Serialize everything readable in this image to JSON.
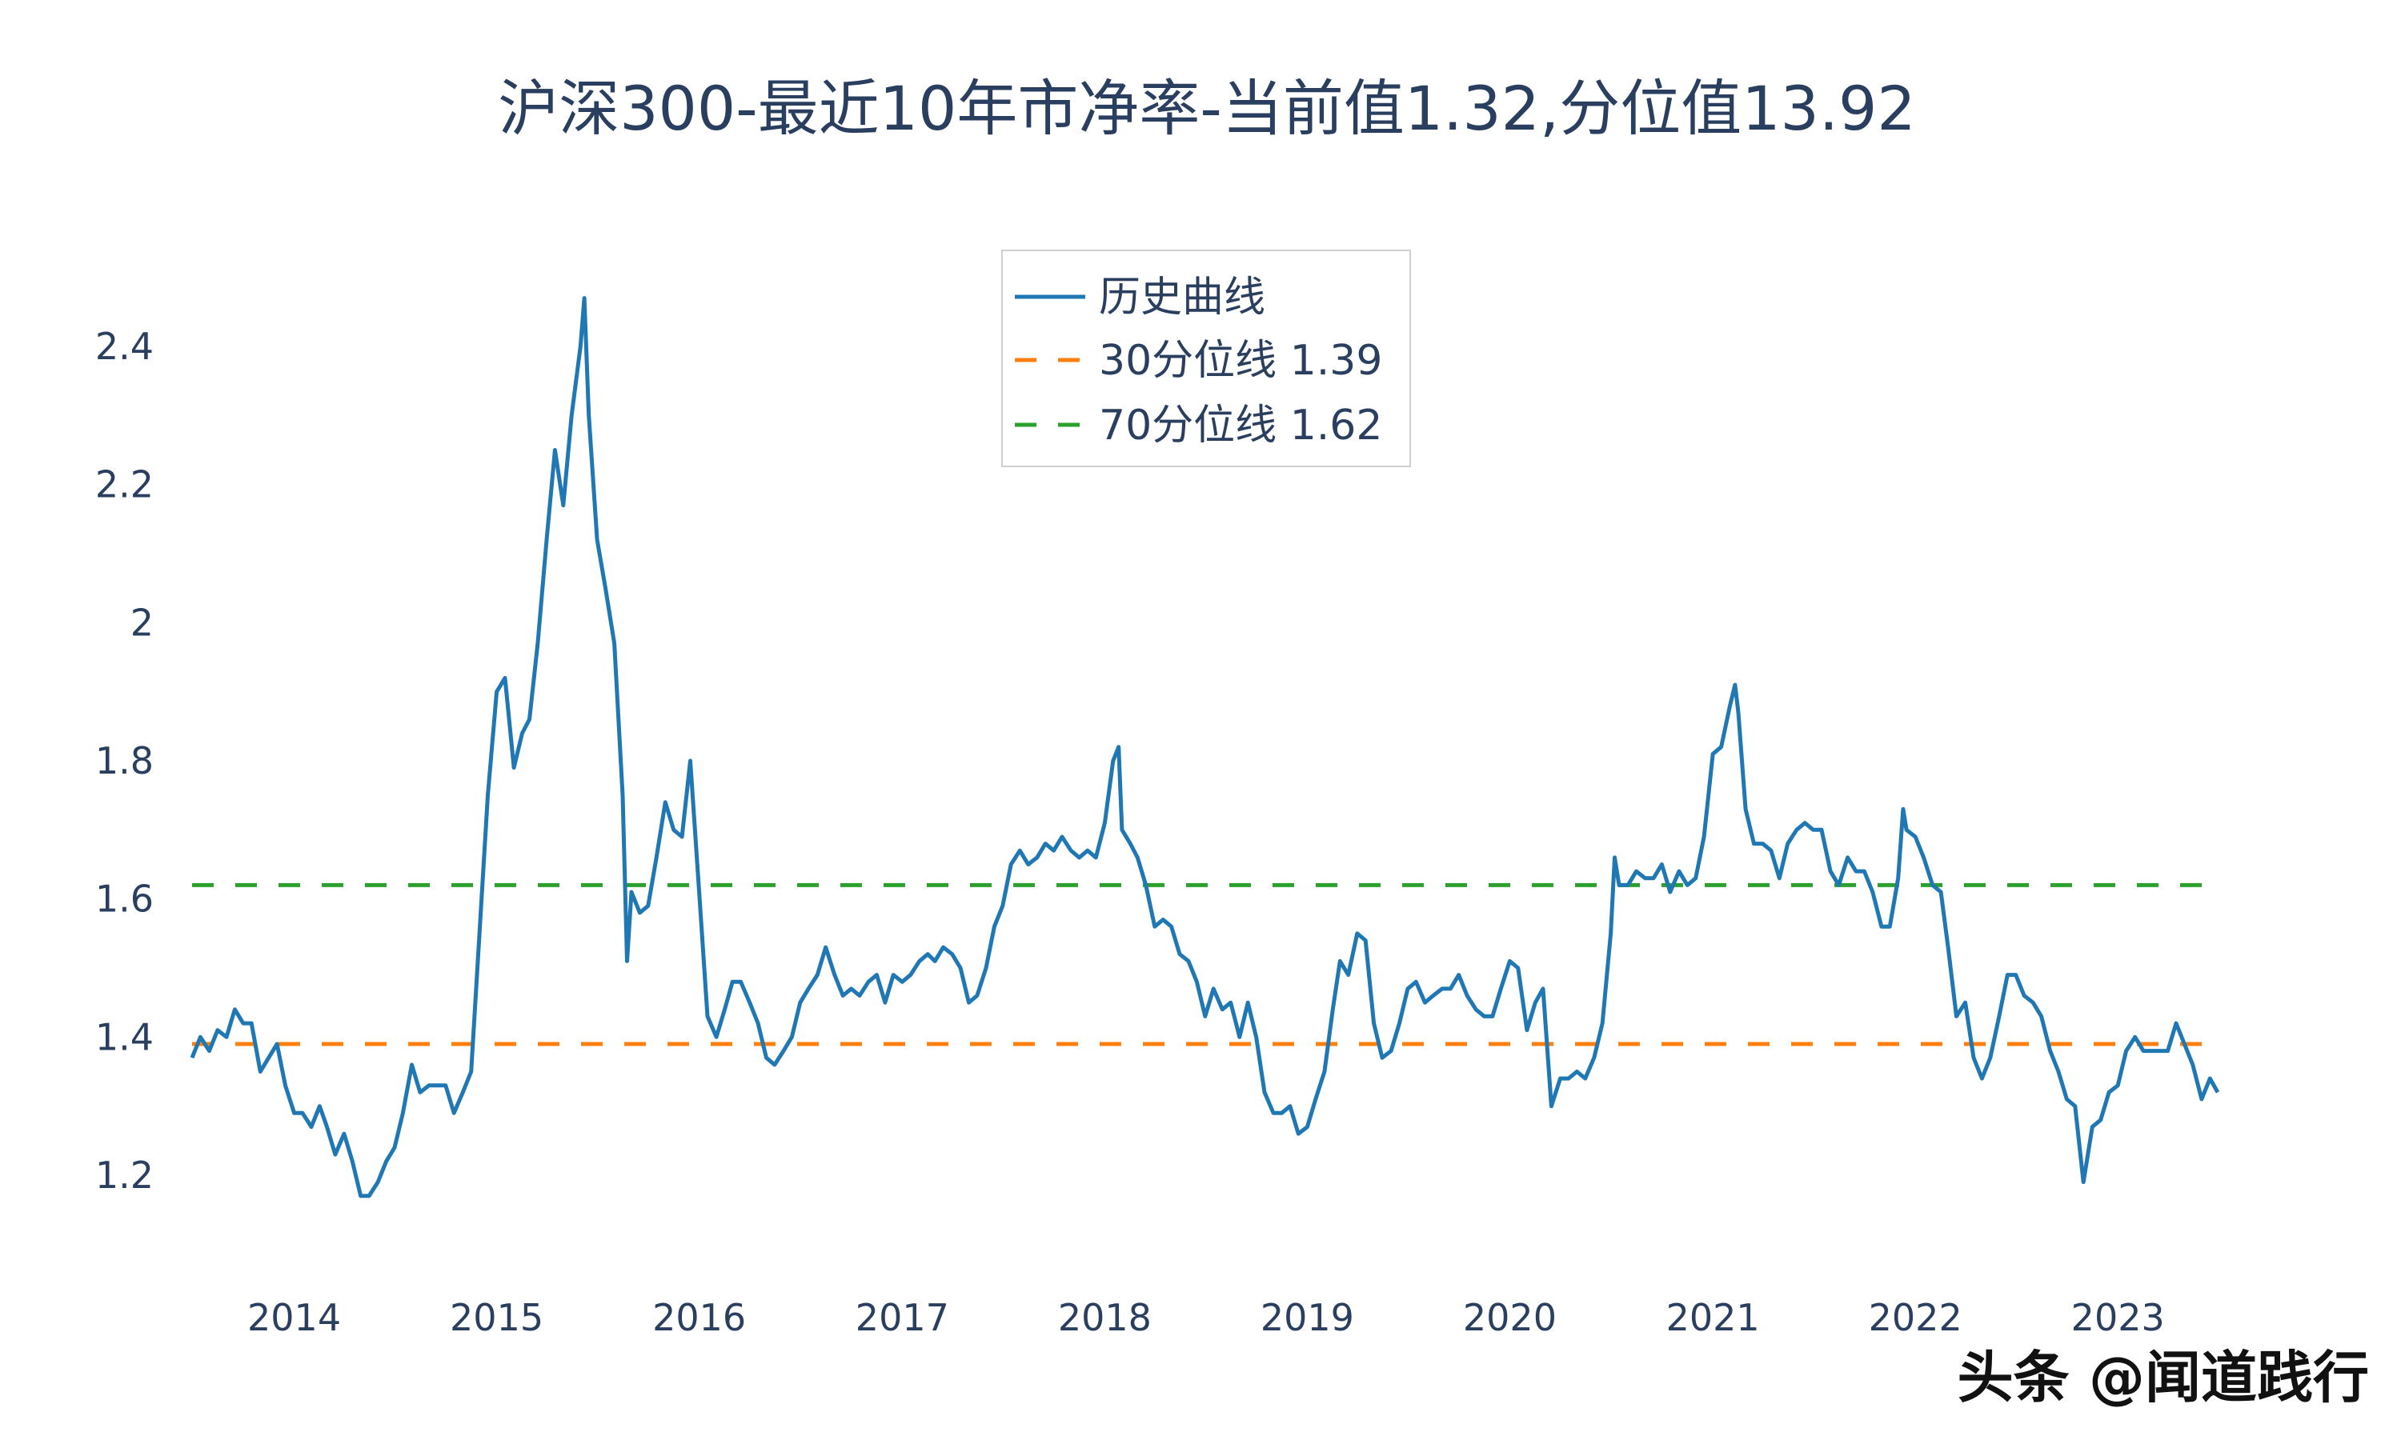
{
  "chart_data": {
    "type": "line",
    "title": "沪深300-最近10年市净率-当前值1.32,分位值13.92",
    "xlabel": "",
    "ylabel": "",
    "ylim": [
      1.08,
      2.52
    ],
    "xlim": [
      "2013-07-01",
      "2023-06-30"
    ],
    "yticks": [
      "2.4",
      "2.2",
      "2",
      "1.8",
      "1.6",
      "1.4",
      "1.2"
    ],
    "xticks": [
      "2014",
      "2015",
      "2016",
      "2017",
      "2018",
      "2019",
      "2020",
      "2021",
      "2022",
      "2023"
    ],
    "grid": false,
    "legend_position": "top-center",
    "series": [
      {
        "name": "历史曲线",
        "color": "#1f77b4",
        "style": "solid",
        "points": [
          [
            "2013-07-01",
            1.37
          ],
          [
            "2013-07-16",
            1.4
          ],
          [
            "2013-08-01",
            1.38
          ],
          [
            "2013-08-16",
            1.41
          ],
          [
            "2013-09-01",
            1.4
          ],
          [
            "2013-09-16",
            1.44
          ],
          [
            "2013-10-01",
            1.42
          ],
          [
            "2013-10-16",
            1.42
          ],
          [
            "2013-11-01",
            1.35
          ],
          [
            "2013-11-16",
            1.37
          ],
          [
            "2013-12-01",
            1.39
          ],
          [
            "2013-12-16",
            1.33
          ],
          [
            "2014-01-01",
            1.29
          ],
          [
            "2014-01-16",
            1.29
          ],
          [
            "2014-02-01",
            1.27
          ],
          [
            "2014-02-16",
            1.3
          ],
          [
            "2014-03-01",
            1.27
          ],
          [
            "2014-03-16",
            1.23
          ],
          [
            "2014-04-01",
            1.26
          ],
          [
            "2014-04-16",
            1.22
          ],
          [
            "2014-05-01",
            1.17
          ],
          [
            "2014-05-16",
            1.17
          ],
          [
            "2014-06-01",
            1.19
          ],
          [
            "2014-06-16",
            1.22
          ],
          [
            "2014-07-01",
            1.24
          ],
          [
            "2014-07-16",
            1.29
          ],
          [
            "2014-08-01",
            1.36
          ],
          [
            "2014-08-16",
            1.32
          ],
          [
            "2014-09-01",
            1.33
          ],
          [
            "2014-09-16",
            1.33
          ],
          [
            "2014-10-01",
            1.33
          ],
          [
            "2014-10-16",
            1.29
          ],
          [
            "2014-11-01",
            1.32
          ],
          [
            "2014-11-16",
            1.35
          ],
          [
            "2014-12-01",
            1.55
          ],
          [
            "2014-12-16",
            1.75
          ],
          [
            "2015-01-01",
            1.9
          ],
          [
            "2015-01-16",
            1.92
          ],
          [
            "2015-02-01",
            1.79
          ],
          [
            "2015-02-16",
            1.84
          ],
          [
            "2015-03-01",
            1.86
          ],
          [
            "2015-03-16",
            1.97
          ],
          [
            "2015-04-01",
            2.12
          ],
          [
            "2015-04-16",
            2.25
          ],
          [
            "2015-05-01",
            2.17
          ],
          [
            "2015-05-16",
            2.3
          ],
          [
            "2015-06-01",
            2.4
          ],
          [
            "2015-06-08",
            2.47
          ],
          [
            "2015-06-16",
            2.3
          ],
          [
            "2015-07-01",
            2.12
          ],
          [
            "2015-07-16",
            2.05
          ],
          [
            "2015-08-01",
            1.97
          ],
          [
            "2015-08-16",
            1.75
          ],
          [
            "2015-08-24",
            1.51
          ],
          [
            "2015-09-01",
            1.61
          ],
          [
            "2015-09-16",
            1.58
          ],
          [
            "2015-10-01",
            1.59
          ],
          [
            "2015-10-16",
            1.66
          ],
          [
            "2015-11-01",
            1.74
          ],
          [
            "2015-11-16",
            1.7
          ],
          [
            "2015-12-01",
            1.69
          ],
          [
            "2015-12-16",
            1.8
          ],
          [
            "2016-01-01",
            1.61
          ],
          [
            "2016-01-16",
            1.43
          ],
          [
            "2016-02-01",
            1.4
          ],
          [
            "2016-02-16",
            1.44
          ],
          [
            "2016-03-01",
            1.48
          ],
          [
            "2016-03-16",
            1.48
          ],
          [
            "2016-04-01",
            1.45
          ],
          [
            "2016-04-16",
            1.42
          ],
          [
            "2016-05-01",
            1.37
          ],
          [
            "2016-05-16",
            1.36
          ],
          [
            "2016-06-01",
            1.38
          ],
          [
            "2016-06-16",
            1.4
          ],
          [
            "2016-07-01",
            1.45
          ],
          [
            "2016-07-16",
            1.47
          ],
          [
            "2016-08-01",
            1.49
          ],
          [
            "2016-08-16",
            1.53
          ],
          [
            "2016-09-01",
            1.49
          ],
          [
            "2016-09-16",
            1.46
          ],
          [
            "2016-10-01",
            1.47
          ],
          [
            "2016-10-16",
            1.46
          ],
          [
            "2016-11-01",
            1.48
          ],
          [
            "2016-11-16",
            1.49
          ],
          [
            "2016-12-01",
            1.45
          ],
          [
            "2016-12-16",
            1.49
          ],
          [
            "2017-01-01",
            1.48
          ],
          [
            "2017-01-16",
            1.49
          ],
          [
            "2017-02-01",
            1.51
          ],
          [
            "2017-02-16",
            1.52
          ],
          [
            "2017-03-01",
            1.51
          ],
          [
            "2017-03-16",
            1.53
          ],
          [
            "2017-04-01",
            1.52
          ],
          [
            "2017-04-16",
            1.5
          ],
          [
            "2017-05-01",
            1.45
          ],
          [
            "2017-05-16",
            1.46
          ],
          [
            "2017-06-01",
            1.5
          ],
          [
            "2017-06-16",
            1.56
          ],
          [
            "2017-07-01",
            1.59
          ],
          [
            "2017-07-16",
            1.65
          ],
          [
            "2017-08-01",
            1.67
          ],
          [
            "2017-08-16",
            1.65
          ],
          [
            "2017-09-01",
            1.66
          ],
          [
            "2017-09-16",
            1.68
          ],
          [
            "2017-10-01",
            1.67
          ],
          [
            "2017-10-16",
            1.69
          ],
          [
            "2017-11-01",
            1.67
          ],
          [
            "2017-11-16",
            1.66
          ],
          [
            "2017-12-01",
            1.67
          ],
          [
            "2017-12-16",
            1.66
          ],
          [
            "2018-01-01",
            1.71
          ],
          [
            "2018-01-16",
            1.8
          ],
          [
            "2018-01-26",
            1.82
          ],
          [
            "2018-02-01",
            1.7
          ],
          [
            "2018-02-16",
            1.68
          ],
          [
            "2018-03-01",
            1.66
          ],
          [
            "2018-03-16",
            1.62
          ],
          [
            "2018-04-01",
            1.56
          ],
          [
            "2018-04-16",
            1.57
          ],
          [
            "2018-05-01",
            1.56
          ],
          [
            "2018-05-16",
            1.52
          ],
          [
            "2018-06-01",
            1.51
          ],
          [
            "2018-06-16",
            1.48
          ],
          [
            "2018-07-01",
            1.43
          ],
          [
            "2018-07-16",
            1.47
          ],
          [
            "2018-08-01",
            1.44
          ],
          [
            "2018-08-16",
            1.45
          ],
          [
            "2018-09-01",
            1.4
          ],
          [
            "2018-09-16",
            1.45
          ],
          [
            "2018-10-01",
            1.4
          ],
          [
            "2018-10-16",
            1.32
          ],
          [
            "2018-11-01",
            1.29
          ],
          [
            "2018-11-16",
            1.29
          ],
          [
            "2018-12-01",
            1.3
          ],
          [
            "2018-12-16",
            1.26
          ],
          [
            "2019-01-01",
            1.27
          ],
          [
            "2019-01-16",
            1.31
          ],
          [
            "2019-02-01",
            1.35
          ],
          [
            "2019-02-16",
            1.44
          ],
          [
            "2019-03-01",
            1.51
          ],
          [
            "2019-03-16",
            1.49
          ],
          [
            "2019-04-01",
            1.55
          ],
          [
            "2019-04-16",
            1.54
          ],
          [
            "2019-05-01",
            1.42
          ],
          [
            "2019-05-16",
            1.37
          ],
          [
            "2019-06-01",
            1.38
          ],
          [
            "2019-06-16",
            1.42
          ],
          [
            "2019-07-01",
            1.47
          ],
          [
            "2019-07-16",
            1.48
          ],
          [
            "2019-08-01",
            1.45
          ],
          [
            "2019-08-16",
            1.46
          ],
          [
            "2019-09-01",
            1.47
          ],
          [
            "2019-09-16",
            1.47
          ],
          [
            "2019-10-01",
            1.49
          ],
          [
            "2019-10-16",
            1.46
          ],
          [
            "2019-11-01",
            1.44
          ],
          [
            "2019-11-16",
            1.43
          ],
          [
            "2019-12-01",
            1.43
          ],
          [
            "2019-12-16",
            1.47
          ],
          [
            "2020-01-01",
            1.51
          ],
          [
            "2020-01-16",
            1.5
          ],
          [
            "2020-02-01",
            1.41
          ],
          [
            "2020-02-16",
            1.45
          ],
          [
            "2020-03-01",
            1.47
          ],
          [
            "2020-03-16",
            1.3
          ],
          [
            "2020-04-01",
            1.34
          ],
          [
            "2020-04-16",
            1.34
          ],
          [
            "2020-05-01",
            1.35
          ],
          [
            "2020-05-16",
            1.34
          ],
          [
            "2020-06-01",
            1.37
          ],
          [
            "2020-06-16",
            1.42
          ],
          [
            "2020-07-01",
            1.55
          ],
          [
            "2020-07-08",
            1.66
          ],
          [
            "2020-07-16",
            1.62
          ],
          [
            "2020-08-01",
            1.62
          ],
          [
            "2020-08-16",
            1.64
          ],
          [
            "2020-09-01",
            1.63
          ],
          [
            "2020-09-16",
            1.63
          ],
          [
            "2020-10-01",
            1.65
          ],
          [
            "2020-10-16",
            1.61
          ],
          [
            "2020-11-01",
            1.64
          ],
          [
            "2020-11-16",
            1.62
          ],
          [
            "2020-12-01",
            1.63
          ],
          [
            "2020-12-16",
            1.69
          ],
          [
            "2021-01-01",
            1.81
          ],
          [
            "2021-01-16",
            1.82
          ],
          [
            "2021-02-01",
            1.88
          ],
          [
            "2021-02-10",
            1.91
          ],
          [
            "2021-02-16",
            1.87
          ],
          [
            "2021-03-01",
            1.73
          ],
          [
            "2021-03-16",
            1.68
          ],
          [
            "2021-04-01",
            1.68
          ],
          [
            "2021-04-16",
            1.67
          ],
          [
            "2021-05-01",
            1.63
          ],
          [
            "2021-05-16",
            1.68
          ],
          [
            "2021-06-01",
            1.7
          ],
          [
            "2021-06-16",
            1.71
          ],
          [
            "2021-07-01",
            1.7
          ],
          [
            "2021-07-16",
            1.7
          ],
          [
            "2021-08-01",
            1.64
          ],
          [
            "2021-08-16",
            1.62
          ],
          [
            "2021-09-01",
            1.66
          ],
          [
            "2021-09-16",
            1.64
          ],
          [
            "2021-10-01",
            1.64
          ],
          [
            "2021-10-16",
            1.61
          ],
          [
            "2021-11-01",
            1.56
          ],
          [
            "2021-11-16",
            1.56
          ],
          [
            "2021-12-01",
            1.63
          ],
          [
            "2021-12-10",
            1.73
          ],
          [
            "2021-12-16",
            1.7
          ],
          [
            "2022-01-01",
            1.69
          ],
          [
            "2022-01-16",
            1.66
          ],
          [
            "2022-02-01",
            1.62
          ],
          [
            "2022-02-16",
            1.61
          ],
          [
            "2022-03-01",
            1.53
          ],
          [
            "2022-03-16",
            1.43
          ],
          [
            "2022-04-01",
            1.45
          ],
          [
            "2022-04-16",
            1.37
          ],
          [
            "2022-05-01",
            1.34
          ],
          [
            "2022-05-16",
            1.37
          ],
          [
            "2022-06-01",
            1.43
          ],
          [
            "2022-06-16",
            1.49
          ],
          [
            "2022-07-01",
            1.49
          ],
          [
            "2022-07-16",
            1.46
          ],
          [
            "2022-08-01",
            1.45
          ],
          [
            "2022-08-16",
            1.43
          ],
          [
            "2022-09-01",
            1.38
          ],
          [
            "2022-09-16",
            1.35
          ],
          [
            "2022-10-01",
            1.31
          ],
          [
            "2022-10-16",
            1.3
          ],
          [
            "2022-10-31",
            1.19
          ],
          [
            "2022-11-16",
            1.27
          ],
          [
            "2022-12-01",
            1.28
          ],
          [
            "2022-12-16",
            1.32
          ],
          [
            "2023-01-01",
            1.33
          ],
          [
            "2023-01-16",
            1.38
          ],
          [
            "2023-02-01",
            1.4
          ],
          [
            "2023-02-16",
            1.38
          ],
          [
            "2023-03-01",
            1.38
          ],
          [
            "2023-03-16",
            1.38
          ],
          [
            "2023-04-01",
            1.38
          ],
          [
            "2023-04-16",
            1.42
          ],
          [
            "2023-05-01",
            1.39
          ],
          [
            "2023-05-16",
            1.36
          ],
          [
            "2023-06-01",
            1.31
          ],
          [
            "2023-06-16",
            1.34
          ],
          [
            "2023-06-30",
            1.32
          ]
        ]
      },
      {
        "name": "30分位线 1.39",
        "color": "#ff7f0e",
        "style": "dash",
        "value": 1.39
      },
      {
        "name": "70分位线 1.62",
        "color": "#2ca02c",
        "style": "dash",
        "value": 1.62
      }
    ]
  },
  "watermark": "头条 @闻道践行"
}
